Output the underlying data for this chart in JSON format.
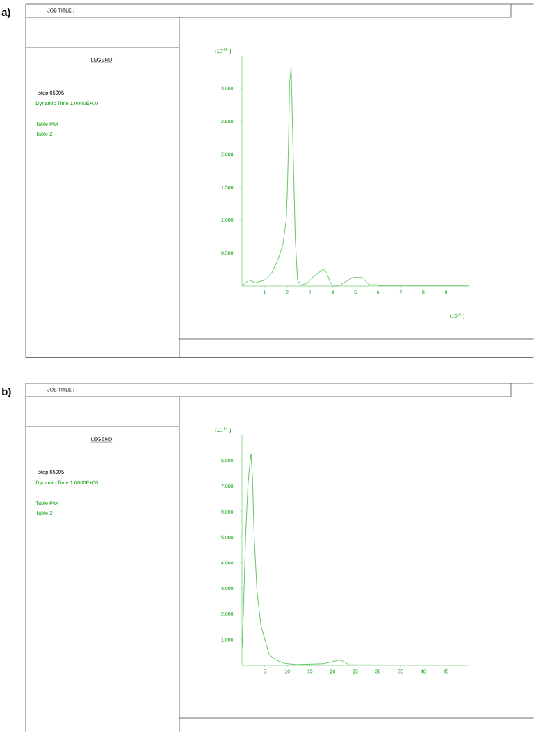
{
  "chart_data": [
    {
      "type": "line",
      "xlabel": "(10$^{01}$ )",
      "ylabel": "(10$^{-05}$ )",
      "annotations": [
        "a)",
        "JOB TITLE : .",
        "LEGEND",
        "step    65005",
        "Dynamic Time   1.0000E+00",
        "Table Plot",
        "Table   2"
      ],
      "xlim": [
        0,
        10
      ],
      "ylim": [
        0,
        3.5
      ],
      "xticks": [
        1,
        2,
        3,
        4,
        5,
        6,
        7,
        8,
        9
      ],
      "yticks": [
        {
          "value": 0.5,
          "label": "0.500"
        },
        {
          "value": 1.0,
          "label": "1.000"
        },
        {
          "value": 1.5,
          "label": "1.500"
        },
        {
          "value": 2.0,
          "label": "2.000"
        },
        {
          "value": 2.5,
          "label": "2.500"
        },
        {
          "value": 3.0,
          "label": "3.000"
        }
      ],
      "series": [
        {
          "color": "#3cb93c",
          "x": [
            0,
            0.3,
            0.6,
            1.0,
            1.3,
            1.6,
            1.8,
            1.95,
            2.0,
            2.05,
            2.1,
            2.17,
            2.25,
            2.35,
            2.45,
            2.6,
            2.9,
            3.1,
            3.3,
            3.6,
            3.75,
            3.9,
            4.0,
            4.3,
            4.6,
            4.9,
            5.3,
            5.6,
            5.9,
            6.2,
            10
          ],
          "values": [
            0,
            0.09,
            0.05,
            0.09,
            0.19,
            0.41,
            0.62,
            1.0,
            1.43,
            2.14,
            3.09,
            3.31,
            2.14,
            0.72,
            0.09,
            0.01,
            0.05,
            0.13,
            0.18,
            0.26,
            0.19,
            0.05,
            0.01,
            0.01,
            0.07,
            0.13,
            0.13,
            0.02,
            0.02,
            0,
            0
          ]
        }
      ]
    },
    {
      "type": "line",
      "ylabel": "(10$^{-04}$ )",
      "annotations": [
        "b)",
        "JOB TITLE : .",
        "LEGEND",
        "step    65005",
        "Dynamic Time   1.0000E+00",
        "Table Plot",
        "Table   2"
      ],
      "xlim": [
        0,
        50
      ],
      "ylim": [
        0,
        9
      ],
      "xticks": [
        5,
        10,
        15,
        20,
        25,
        30,
        35,
        40,
        45
      ],
      "yticks": [
        {
          "value": 1,
          "label": "1.000"
        },
        {
          "value": 2,
          "label": "2.000"
        },
        {
          "value": 3,
          "label": "3.000"
        },
        {
          "value": 4,
          "label": "4.000"
        },
        {
          "value": 5,
          "label": "5.000"
        },
        {
          "value": 6,
          "label": "6.000"
        },
        {
          "value": 7,
          "label": "7.000"
        },
        {
          "value": 8,
          "label": "8.000"
        }
      ],
      "series": [
        {
          "color": "#3cb93c",
          "x": [
            0,
            0.3,
            0.8,
            1.3,
            1.8,
            2.0,
            2.3,
            2.7,
            3.3,
            4.2,
            5.5,
            6.0,
            7.5,
            9.5,
            12,
            18,
            20,
            21.5,
            22.5,
            23.5,
            50
          ],
          "values": [
            0.63,
            2.0,
            5.0,
            7.0,
            8.0,
            8.24,
            7.4,
            5.0,
            2.9,
            1.54,
            0.72,
            0.41,
            0.2,
            0.07,
            0.03,
            0.06,
            0.14,
            0.2,
            0.14,
            0.02,
            0
          ]
        }
      ]
    }
  ]
}
